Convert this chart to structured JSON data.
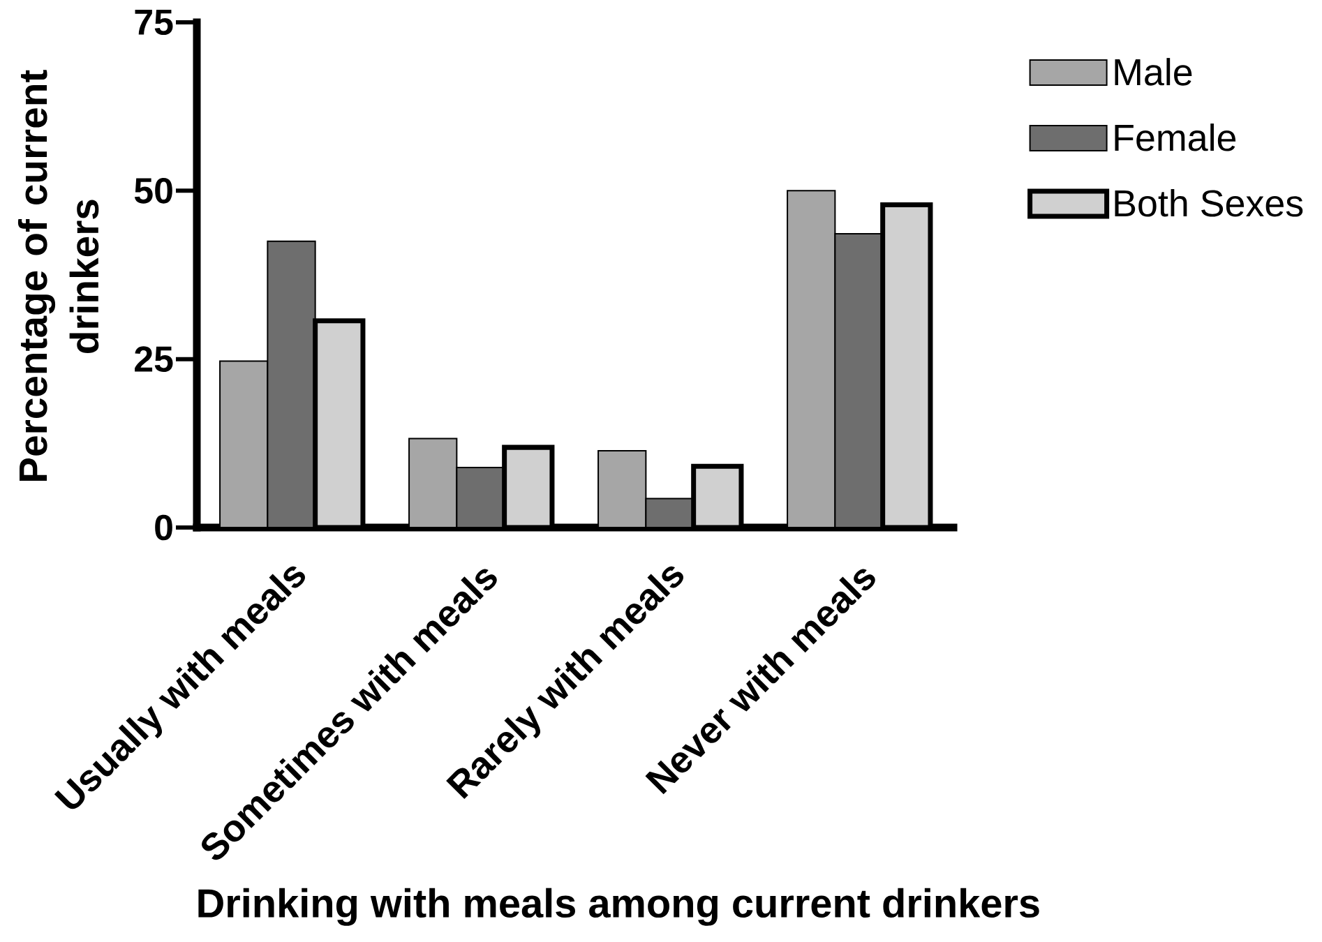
{
  "chart_data": {
    "type": "bar",
    "xlabel": "Drinking with meals among current drinkers",
    "ylabel": "Percentage of current drinkers",
    "categories": [
      "Usually with meals",
      "Sometimes with meals",
      "Rarely with meals",
      "Never with meals"
    ],
    "series": [
      {
        "name": "Male",
        "color": "#a6a6a6",
        "values": [
          24.7,
          13.2,
          11.4,
          50.0
        ]
      },
      {
        "name": "Female",
        "color": "#6e6e6e",
        "values": [
          42.5,
          8.9,
          4.3,
          43.6
        ]
      },
      {
        "name": "Both Sexes",
        "color": "#d0d0d0",
        "values": [
          30.7,
          11.9,
          9.1,
          47.9
        ]
      }
    ],
    "ylim": [
      0,
      75
    ],
    "yticks": [
      0,
      25,
      50,
      75
    ],
    "legend": "top right"
  }
}
